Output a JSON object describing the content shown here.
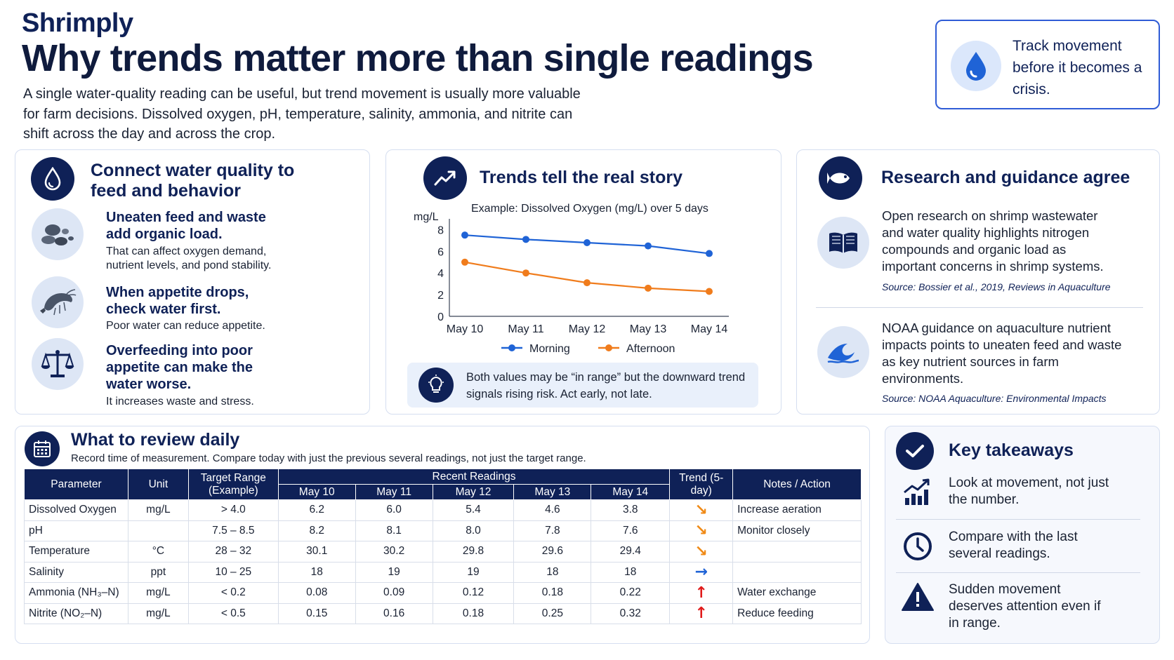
{
  "brand": "Shrimply",
  "headline": "Why trends matter more than single readings",
  "intro": "A single water-quality reading can be useful, but trend movement is usually more valuable for farm decisions. Dissolved oxygen, pH, temperature, salinity, ammonia, and nitrite can shift across the day and across the crop.",
  "callout": {
    "text": "Track movement before it becomes a crisis.",
    "icon": "water-drop-icon"
  },
  "connect": {
    "title": "Connect water quality to feed and behavior",
    "items": [
      {
        "icon": "feed-pellets-icon",
        "title": "Uneaten feed and waste add organic load.",
        "body": "That can affect oxygen demand, nutrient levels, and pond stability."
      },
      {
        "icon": "shrimp-icon",
        "title": "When appetite drops, check water first.",
        "body": "Poor water can reduce appetite."
      },
      {
        "icon": "balance-scale-icon",
        "title": "Overfeeding into poor appetite can make the water worse.",
        "body": "It increases waste and stress."
      }
    ]
  },
  "trends": {
    "title": "Trends tell the real story",
    "insight": "Both values may be “in range” but the downward trend signals rising risk. Act early, not late."
  },
  "chart_data": {
    "type": "line",
    "title": "Example: Dissolved Oxygen (mg/L) over 5 days",
    "xlabel": "",
    "ylabel": "mg/L",
    "categories": [
      "May 10",
      "May 11",
      "May 12",
      "May 13",
      "May 14"
    ],
    "series": [
      {
        "name": "Morning",
        "values": [
          7.5,
          7.1,
          6.8,
          6.5,
          5.8
        ],
        "color": "#1f63d6"
      },
      {
        "name": "Afternoon",
        "values": [
          5.0,
          4.0,
          3.1,
          2.6,
          2.3
        ],
        "color": "#f07c1c"
      }
    ],
    "ylim": [
      0,
      9
    ],
    "yticks": [
      0,
      2,
      4,
      6,
      8
    ],
    "grid": false,
    "legend": "bottom"
  },
  "research": {
    "title": "Research and guidance agree",
    "items": [
      {
        "icon": "open-book-icon",
        "text": "Open research on shrimp wastewater and water quality highlights nitrogen compounds and organic load as important concerns in shrimp systems.",
        "source": "Source: Bossier et al., 2019, Reviews in Aquaculture"
      },
      {
        "icon": "wave-icon",
        "text": "NOAA guidance on aquaculture nutrient impacts points to uneaten feed and waste as key nutrient sources in farm environments.",
        "source": "Source: NOAA Aquaculture: Environmental Impacts"
      }
    ]
  },
  "review": {
    "title": "What to review daily",
    "subtitle": "Record time of measurement. Compare today with just the previous several readings, not just the target range.",
    "headers": {
      "parameter": "Parameter",
      "unit": "Unit",
      "target": "Target Range (Example)",
      "recent": "Recent Readings",
      "dates": [
        "May 10",
        "May 11",
        "May 12",
        "May 13",
        "May 14"
      ],
      "trend": "Trend (5-day)",
      "notes": "Notes / Action"
    },
    "rows": [
      {
        "parameter": "Dissolved Oxygen",
        "unit": "mg/L",
        "target": "> 4.0",
        "values": [
          "6.2",
          "6.0",
          "5.4",
          "4.6",
          "3.8"
        ],
        "trend": "down",
        "notes": "Increase aeration"
      },
      {
        "parameter": "pH",
        "unit": "",
        "target": "7.5 – 8.5",
        "values": [
          "8.2",
          "8.1",
          "8.0",
          "7.8",
          "7.6"
        ],
        "trend": "down",
        "notes": "Monitor closely"
      },
      {
        "parameter": "Temperature",
        "unit": "°C",
        "target": "28 – 32",
        "values": [
          "30.1",
          "30.2",
          "29.8",
          "29.6",
          "29.4"
        ],
        "trend": "down",
        "notes": ""
      },
      {
        "parameter": "Salinity",
        "unit": "ppt",
        "target": "10 – 25",
        "values": [
          "18",
          "19",
          "19",
          "18",
          "18"
        ],
        "trend": "flat",
        "notes": ""
      },
      {
        "parameter": "Ammonia (NH₃–N)",
        "unit": "mg/L",
        "target": "< 0.2",
        "values": [
          "0.08",
          "0.09",
          "0.12",
          "0.18",
          "0.22"
        ],
        "trend": "up",
        "notes": "Water exchange"
      },
      {
        "parameter": "Nitrite (NO₂–N)",
        "unit": "mg/L",
        "target": "< 0.5",
        "values": [
          "0.15",
          "0.16",
          "0.18",
          "0.25",
          "0.32"
        ],
        "trend": "up",
        "notes": "Reduce feeding"
      }
    ]
  },
  "takeaways": {
    "title": "Key takeaways",
    "items": [
      {
        "icon": "growth-chart-icon",
        "text": "Look at movement, not just the number."
      },
      {
        "icon": "clock-icon",
        "text": "Compare with the last several readings."
      },
      {
        "icon": "warning-icon",
        "text": "Sudden movement deserves attention even if in range."
      }
    ]
  },
  "colors": {
    "navy": "#0f2157",
    "accent_blue": "#1f63d6",
    "accent_orange": "#f07c1c",
    "trend_down": "#f08a16",
    "trend_flat": "#1f63d6",
    "trend_up": "#e01b1b"
  }
}
